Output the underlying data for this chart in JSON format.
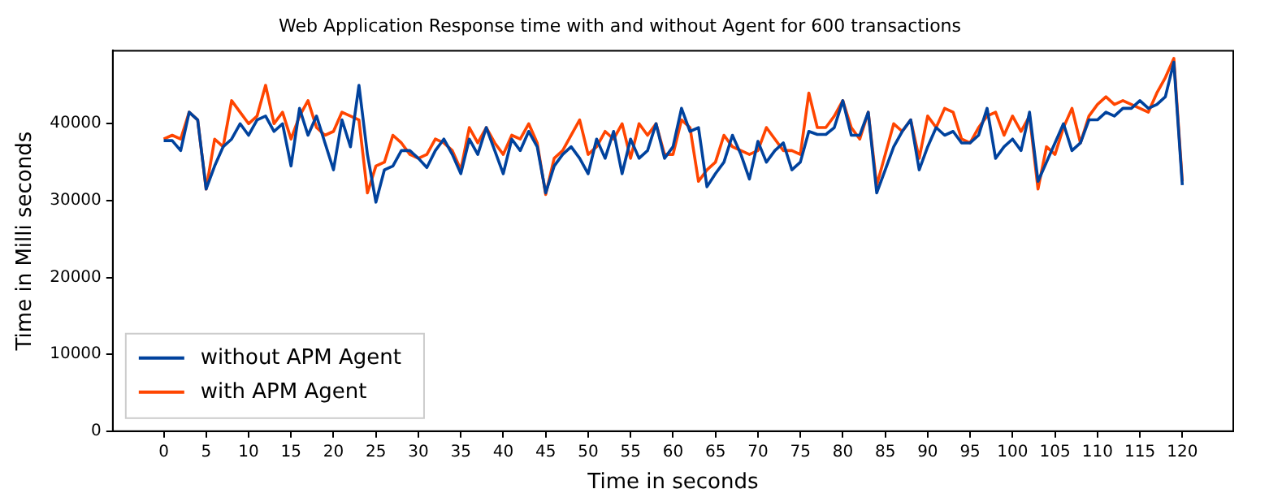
{
  "chart_data": {
    "type": "line",
    "title": "Web Application Response time with and without Agent for 600 transactions",
    "xlabel": "Time in seconds",
    "ylabel": "Time in Milli seconds",
    "x": [
      0,
      1,
      2,
      3,
      4,
      5,
      6,
      7,
      8,
      9,
      10,
      11,
      12,
      13,
      14,
      15,
      16,
      17,
      18,
      19,
      20,
      21,
      22,
      23,
      24,
      25,
      26,
      27,
      28,
      29,
      30,
      31,
      32,
      33,
      34,
      35,
      36,
      37,
      38,
      39,
      40,
      41,
      42,
      43,
      44,
      45,
      46,
      47,
      48,
      49,
      50,
      51,
      52,
      53,
      54,
      55,
      56,
      57,
      58,
      59,
      60,
      61,
      62,
      63,
      64,
      65,
      66,
      67,
      68,
      69,
      70,
      71,
      72,
      73,
      74,
      75,
      76,
      77,
      78,
      79,
      80,
      81,
      82,
      83,
      84,
      85,
      86,
      87,
      88,
      89,
      90,
      91,
      92,
      93,
      94,
      95,
      96,
      97,
      98,
      99,
      100,
      101,
      102,
      103,
      104,
      105,
      106,
      107,
      108,
      109,
      110,
      111,
      112,
      113,
      114,
      115,
      116,
      117,
      118,
      119,
      120
    ],
    "series": [
      {
        "name": "without APM Agent",
        "color": "#00429d",
        "values": [
          37800,
          37800,
          36500,
          41500,
          40500,
          31500,
          34500,
          37000,
          38000,
          40000,
          38500,
          40500,
          41000,
          39000,
          40000,
          34500,
          42000,
          38500,
          41000,
          37500,
          34000,
          40500,
          37000,
          45000,
          36000,
          29800,
          34000,
          34500,
          36500,
          36500,
          35500,
          34300,
          36500,
          38000,
          36000,
          33500,
          38000,
          36000,
          39500,
          36500,
          33500,
          38000,
          36500,
          39000,
          37000,
          31000,
          34500,
          36000,
          37000,
          35500,
          33500,
          38000,
          35500,
          39000,
          33500,
          38000,
          35500,
          36500,
          40000,
          35500,
          37000,
          42000,
          39000,
          39500,
          31800,
          33500,
          35000,
          38500,
          36000,
          32800,
          37700,
          35000,
          36500,
          37500,
          34000,
          35000,
          39000,
          38600,
          38600,
          39500,
          43000,
          38500,
          38500,
          41500,
          31000,
          34000,
          37000,
          39000,
          40500,
          34000,
          37000,
          39500,
          38500,
          39000,
          37500,
          37500,
          38500,
          42000,
          35500,
          37000,
          38000,
          36500,
          41500,
          32500,
          35000,
          37500,
          40000,
          36500,
          37500,
          40500,
          40500,
          41500,
          41000,
          42000,
          42000,
          43000,
          42000,
          42500,
          43500,
          48000,
          32000
        ]
      },
      {
        "name": "with APM Agent",
        "color": "#ff4500",
        "values": [
          38000,
          38500,
          38000,
          41500,
          40500,
          31500,
          38000,
          37000,
          43000,
          41500,
          40000,
          41000,
          45000,
          40000,
          41500,
          38000,
          41000,
          43000,
          39500,
          38500,
          39000,
          41500,
          41000,
          40500,
          31000,
          34500,
          35000,
          38500,
          37500,
          36000,
          35500,
          36000,
          38000,
          37500,
          36500,
          34000,
          39500,
          37500,
          39500,
          37500,
          36000,
          38500,
          38000,
          40000,
          37500,
          30800,
          35500,
          36500,
          38500,
          40500,
          36000,
          37000,
          39000,
          38000,
          40000,
          35500,
          40000,
          38500,
          40000,
          36000,
          36000,
          40500,
          39500,
          32500,
          34000,
          35000,
          38500,
          37000,
          36500,
          36000,
          36500,
          39500,
          38000,
          36500,
          36500,
          36000,
          44000,
          39500,
          39500,
          41000,
          43000,
          39500,
          38000,
          41500,
          32000,
          36000,
          40000,
          39000,
          40500,
          35500,
          41000,
          39500,
          42000,
          41500,
          38000,
          37500,
          39500,
          41000,
          41500,
          38500,
          41000,
          39000,
          41000,
          31500,
          37000,
          36000,
          39500,
          42000,
          37500,
          41000,
          42500,
          43500,
          42500,
          43000,
          42500,
          42000,
          41500,
          44000,
          46000,
          48500,
          32500
        ]
      }
    ],
    "xlim": [
      -6,
      126
    ],
    "xticks": [
      0,
      5,
      10,
      15,
      20,
      25,
      30,
      35,
      40,
      45,
      50,
      55,
      60,
      65,
      70,
      75,
      80,
      85,
      90,
      95,
      100,
      105,
      110,
      115,
      120
    ],
    "ylim": [
      0,
      49500
    ],
    "yticks": [
      0,
      10000,
      20000,
      30000,
      40000
    ],
    "grid": false,
    "legend": "bottom left",
    "marker": "none",
    "line_style": "solid"
  }
}
